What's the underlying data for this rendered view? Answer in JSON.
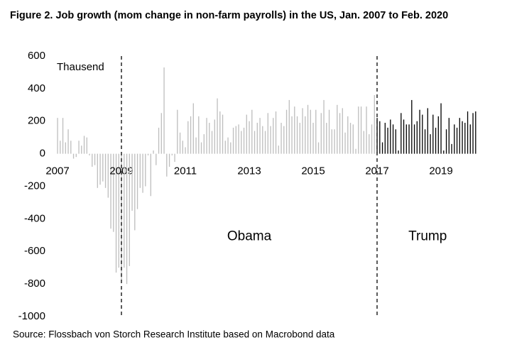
{
  "chart_data": {
    "type": "bar",
    "title": "Figure 2. Job growth (mom change in non-farm payrolls) in the US, Jan. 2007 to Feb. 2020",
    "y_label": "Thausend",
    "source": "Source: Flossbach von Storch Research Institute based on Macrobond data",
    "categories": [
      "2007",
      null,
      null,
      null,
      null,
      null,
      null,
      null,
      null,
      null,
      null,
      null,
      null,
      null,
      null,
      null,
      null,
      null,
      null,
      null,
      null,
      null,
      null,
      null,
      "2009",
      null,
      null,
      null,
      null,
      null,
      null,
      null,
      null,
      null,
      null,
      null,
      null,
      null,
      null,
      null,
      null,
      null,
      null,
      null,
      null,
      null,
      null,
      null,
      "2011",
      null,
      null,
      null,
      null,
      null,
      null,
      null,
      null,
      null,
      null,
      null,
      null,
      null,
      null,
      null,
      null,
      null,
      null,
      null,
      null,
      null,
      null,
      null,
      "2013",
      null,
      null,
      null,
      null,
      null,
      null,
      null,
      null,
      null,
      null,
      null,
      null,
      null,
      null,
      null,
      null,
      null,
      null,
      null,
      null,
      null,
      null,
      null,
      "2015",
      null,
      null,
      null,
      null,
      null,
      null,
      null,
      null,
      null,
      null,
      null,
      null,
      null,
      null,
      null,
      null,
      null,
      null,
      null,
      null,
      null,
      null,
      null,
      "2017",
      null,
      null,
      null,
      null,
      null,
      null,
      null,
      null,
      null,
      null,
      null,
      null,
      null,
      null,
      null,
      null,
      null,
      null,
      null,
      null,
      null,
      null,
      null,
      "2019",
      null,
      null,
      null,
      null,
      null,
      null,
      null,
      null,
      null,
      null,
      null,
      null,
      null
    ],
    "values": [
      220,
      80,
      220,
      70,
      150,
      80,
      -30,
      -20,
      80,
      50,
      110,
      100,
      -10,
      -80,
      -70,
      -210,
      -190,
      -170,
      -210,
      -270,
      -460,
      -480,
      -730,
      -700,
      -780,
      -700,
      -800,
      -690,
      -350,
      -470,
      -340,
      -210,
      -240,
      -200,
      -10,
      -260,
      20,
      -70,
      160,
      250,
      530,
      -140,
      -80,
      -10,
      -50,
      270,
      130,
      80,
      40,
      200,
      230,
      310,
      100,
      230,
      70,
      120,
      220,
      190,
      140,
      210,
      340,
      260,
      240,
      80,
      100,
      70,
      160,
      170,
      180,
      140,
      160,
      240,
      200,
      270,
      140,
      190,
      220,
      170,
      140,
      250,
      170,
      220,
      260,
      50,
      190,
      170,
      270,
      330,
      230,
      290,
      230,
      190,
      280,
      230,
      300,
      270,
      190,
      270,
      70,
      250,
      330,
      190,
      270,
      150,
      150,
      300,
      250,
      280,
      130,
      230,
      190,
      180,
      30,
      290,
      290,
      140,
      290,
      120,
      180,
      360,
      220,
      200,
      70,
      190,
      160,
      210,
      180,
      150,
      20,
      250,
      210,
      180,
      180,
      330,
      180,
      200,
      270,
      240,
      150,
      280,
      120,
      240,
      160,
      230,
      310,
      20,
      150,
      220,
      60,
      180,
      160,
      220,
      200,
      190,
      260,
      180,
      250,
      260
    ],
    "color": "#bdbdbd",
    "highlight_color": "#000000",
    "highlight_from": "2017",
    "ylim": [
      -1000,
      600
    ],
    "yticks": [
      -1000,
      -800,
      -600,
      -400,
      -200,
      0,
      200,
      400,
      600
    ],
    "markers": [
      {
        "label": "Obama",
        "at": "2009"
      },
      {
        "label": "Trump",
        "at": "2017"
      }
    ]
  }
}
